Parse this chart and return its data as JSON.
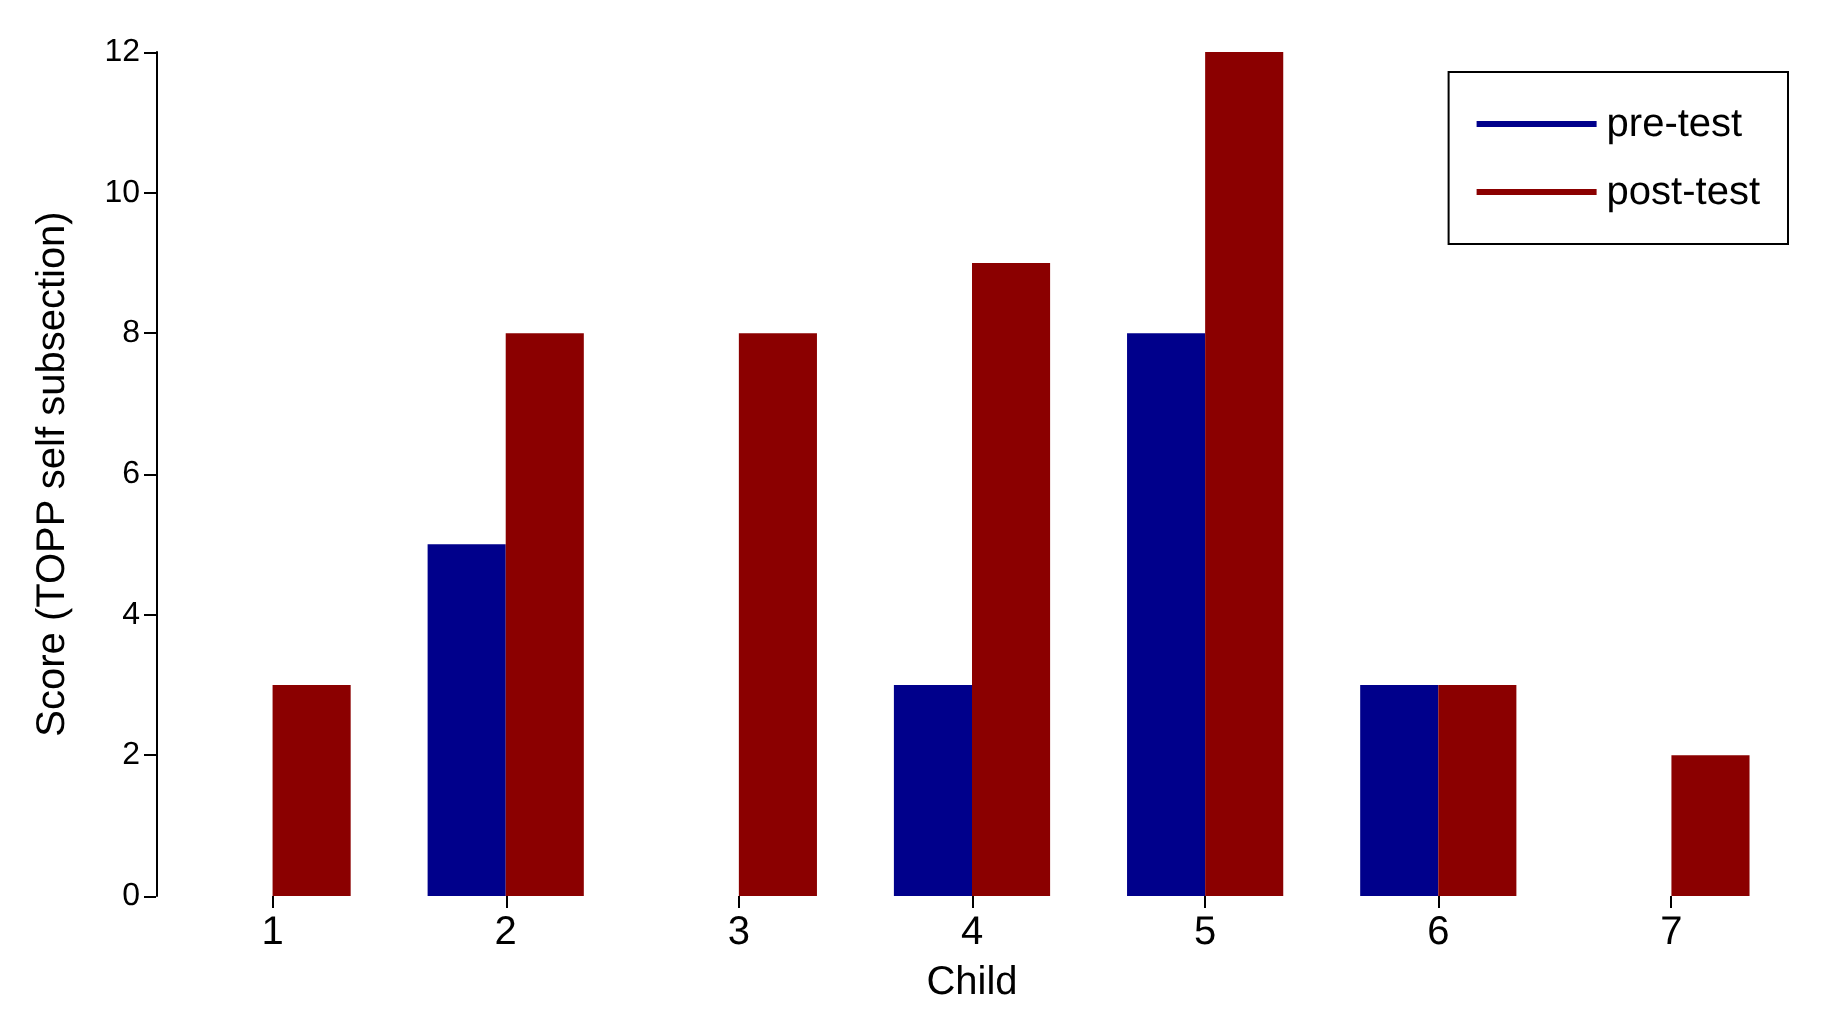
{
  "chart_data": {
    "type": "bar",
    "xlabel": "Child",
    "ylabel": "Score (TOPP self subsection)",
    "categories": [
      "1",
      "2",
      "3",
      "4",
      "5",
      "6",
      "7"
    ],
    "series": [
      {
        "name": "pre-test",
        "color": "#00008b",
        "values": [
          0,
          5,
          0,
          3,
          8,
          3,
          0
        ]
      },
      {
        "name": "post-test",
        "color": "#8b0000",
        "values": [
          3,
          8,
          8,
          9,
          12,
          3,
          2
        ]
      }
    ],
    "ylim": [
      0,
      12
    ],
    "yticks": [
      0,
      2,
      4,
      6,
      8,
      10,
      12
    ],
    "grid": false,
    "legend": "top right"
  }
}
